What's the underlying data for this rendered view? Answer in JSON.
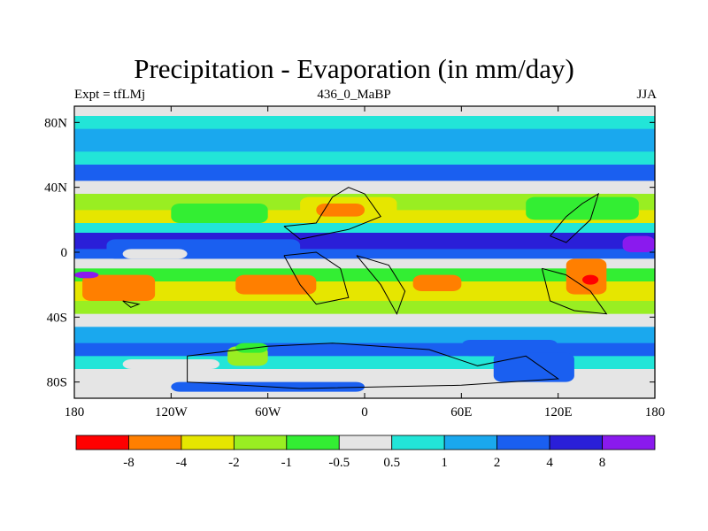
{
  "chart_data": {
    "type": "heatmap",
    "title": "Precipitation - Evaporation (in mm/day)",
    "subtitle_left": "Expt = tfLMj",
    "subtitle_center": "436_0_MaBP",
    "subtitle_right": "JJA",
    "xlabel": "",
    "ylabel": "",
    "xlim": [
      -180,
      180
    ],
    "ylim": [
      -90,
      90
    ],
    "x_ticks": [
      {
        "value": -180,
        "label": "180"
      },
      {
        "value": -120,
        "label": "120W"
      },
      {
        "value": -60,
        "label": "60W"
      },
      {
        "value": 0,
        "label": "0"
      },
      {
        "value": 60,
        "label": "60E"
      },
      {
        "value": 120,
        "label": "120E"
      },
      {
        "value": 180,
        "label": "180"
      }
    ],
    "y_ticks": [
      {
        "value": 80,
        "label": "80N"
      },
      {
        "value": 40,
        "label": "40N"
      },
      {
        "value": 0,
        "label": "0"
      },
      {
        "value": -40,
        "label": "40S"
      },
      {
        "value": -80,
        "label": "80S"
      }
    ],
    "levels": [
      -8,
      -4,
      -2,
      -1,
      -0.5,
      0.5,
      1,
      2,
      4,
      8
    ],
    "level_labels": [
      "-8",
      "-4",
      "-2",
      "-1",
      "-0.5",
      "0.5",
      "1",
      "2",
      "4",
      "8"
    ],
    "colors": [
      "#ff0000",
      "#ff7f00",
      "#e6e600",
      "#99ee22",
      "#33ee33",
      "#e5e5e5",
      "#22e5d8",
      "#1aa8ee",
      "#1a5ff0",
      "#2a1fd8",
      "#8a1aee"
    ],
    "zonal_bands": [
      {
        "lat": [
          84,
          90
        ],
        "class": 5
      },
      {
        "lat": [
          76,
          84
        ],
        "class": 6
      },
      {
        "lat": [
          62,
          76
        ],
        "class": 7
      },
      {
        "lat": [
          54,
          62
        ],
        "class": 6
      },
      {
        "lat": [
          44,
          54
        ],
        "class": 8
      },
      {
        "lat": [
          36,
          44
        ],
        "class": 5
      },
      {
        "lat": [
          26,
          36
        ],
        "class": 3
      },
      {
        "lat": [
          18,
          26
        ],
        "class": 2
      },
      {
        "lat": [
          12,
          18
        ],
        "class": 6
      },
      {
        "lat": [
          2,
          12
        ],
        "class": 9
      },
      {
        "lat": [
          -4,
          2
        ],
        "class": 8
      },
      {
        "lat": [
          -10,
          -4
        ],
        "class": 5
      },
      {
        "lat": [
          -18,
          -10
        ],
        "class": 4
      },
      {
        "lat": [
          -30,
          -18
        ],
        "class": 2
      },
      {
        "lat": [
          -38,
          -30
        ],
        "class": 3
      },
      {
        "lat": [
          -46,
          -38
        ],
        "class": 5
      },
      {
        "lat": [
          -56,
          -46
        ],
        "class": 7
      },
      {
        "lat": [
          -64,
          -56
        ],
        "class": 8
      },
      {
        "lat": [
          -72,
          -64
        ],
        "class": 6
      },
      {
        "lat": [
          -80,
          -72
        ],
        "class": 5
      },
      {
        "lat": [
          -90,
          -80
        ],
        "class": 5
      }
    ],
    "patches": [
      {
        "lon": [
          -160,
          -40
        ],
        "lat": [
          -4,
          8
        ],
        "class": 8
      },
      {
        "lon": [
          -150,
          -110
        ],
        "lat": [
          -4,
          2
        ],
        "class": 5
      },
      {
        "lon": [
          -120,
          -60
        ],
        "lat": [
          18,
          30
        ],
        "class": 4
      },
      {
        "lon": [
          -40,
          20
        ],
        "lat": [
          20,
          34
        ],
        "class": 2
      },
      {
        "lon": [
          -30,
          0
        ],
        "lat": [
          22,
          30
        ],
        "class": 1
      },
      {
        "lon": [
          100,
          170
        ],
        "lat": [
          20,
          34
        ],
        "class": 4
      },
      {
        "lon": [
          -175,
          -130
        ],
        "lat": [
          -30,
          -14
        ],
        "class": 1
      },
      {
        "lon": [
          -80,
          -30
        ],
        "lat": [
          -26,
          -14
        ],
        "class": 1
      },
      {
        "lon": [
          30,
          60
        ],
        "lat": [
          -24,
          -14
        ],
        "class": 1
      },
      {
        "lon": [
          125,
          150
        ],
        "lat": [
          -26,
          -4
        ],
        "class": 1
      },
      {
        "lon": [
          135,
          145
        ],
        "lat": [
          -20,
          -14
        ],
        "class": 0
      },
      {
        "lon": [
          -85,
          -60
        ],
        "lat": [
          -70,
          -58
        ],
        "class": 3
      },
      {
        "lon": [
          -80,
          -60
        ],
        "lat": [
          -62,
          -56
        ],
        "class": 4
      },
      {
        "lon": [
          60,
          120
        ],
        "lat": [
          -64,
          -54
        ],
        "class": 8
      },
      {
        "lon": [
          -150,
          -90
        ],
        "lat": [
          -72,
          -66
        ],
        "class": 5
      },
      {
        "lon": [
          -120,
          0
        ],
        "lat": [
          -86,
          -80
        ],
        "class": 8
      },
      {
        "lon": [
          80,
          130
        ],
        "lat": [
          -80,
          -62
        ],
        "class": 8
      },
      {
        "lon": [
          -180,
          -165
        ],
        "lat": [
          -16,
          -12
        ],
        "class": 10
      },
      {
        "lon": [
          160,
          180
        ],
        "lat": [
          0,
          10
        ],
        "class": 10
      }
    ],
    "coastlines": [
      [
        [
          -50,
          16
        ],
        [
          -30,
          18
        ],
        [
          -20,
          34
        ],
        [
          -10,
          40
        ],
        [
          0,
          36
        ],
        [
          10,
          22
        ],
        [
          -10,
          14
        ],
        [
          -40,
          8
        ],
        [
          -50,
          16
        ]
      ],
      [
        [
          -50,
          -2
        ],
        [
          -40,
          -20
        ],
        [
          -30,
          -32
        ],
        [
          -10,
          -28
        ],
        [
          -15,
          -10
        ],
        [
          -30,
          0
        ],
        [
          -50,
          -2
        ]
      ],
      [
        [
          -5,
          -2
        ],
        [
          10,
          -20
        ],
        [
          20,
          -38
        ],
        [
          25,
          -24
        ],
        [
          15,
          -8
        ],
        [
          -5,
          -2
        ]
      ],
      [
        [
          110,
          -10
        ],
        [
          125,
          -14
        ],
        [
          140,
          -24
        ],
        [
          150,
          -38
        ],
        [
          130,
          -36
        ],
        [
          115,
          -30
        ],
        [
          110,
          -10
        ]
      ],
      [
        [
          115,
          10
        ],
        [
          125,
          22
        ],
        [
          135,
          30
        ],
        [
          145,
          36
        ],
        [
          140,
          20
        ],
        [
          125,
          6
        ],
        [
          115,
          10
        ]
      ],
      [
        [
          -110,
          -64
        ],
        [
          -60,
          -58
        ],
        [
          -20,
          -56
        ],
        [
          40,
          -60
        ],
        [
          70,
          -70
        ],
        [
          100,
          -64
        ],
        [
          120,
          -78
        ],
        [
          60,
          -82
        ],
        [
          -40,
          -84
        ],
        [
          -110,
          -80
        ],
        [
          -110,
          -64
        ]
      ],
      [
        [
          -150,
          -30
        ],
        [
          -140,
          -32
        ],
        [
          -145,
          -34
        ],
        [
          -150,
          -30
        ]
      ]
    ]
  }
}
